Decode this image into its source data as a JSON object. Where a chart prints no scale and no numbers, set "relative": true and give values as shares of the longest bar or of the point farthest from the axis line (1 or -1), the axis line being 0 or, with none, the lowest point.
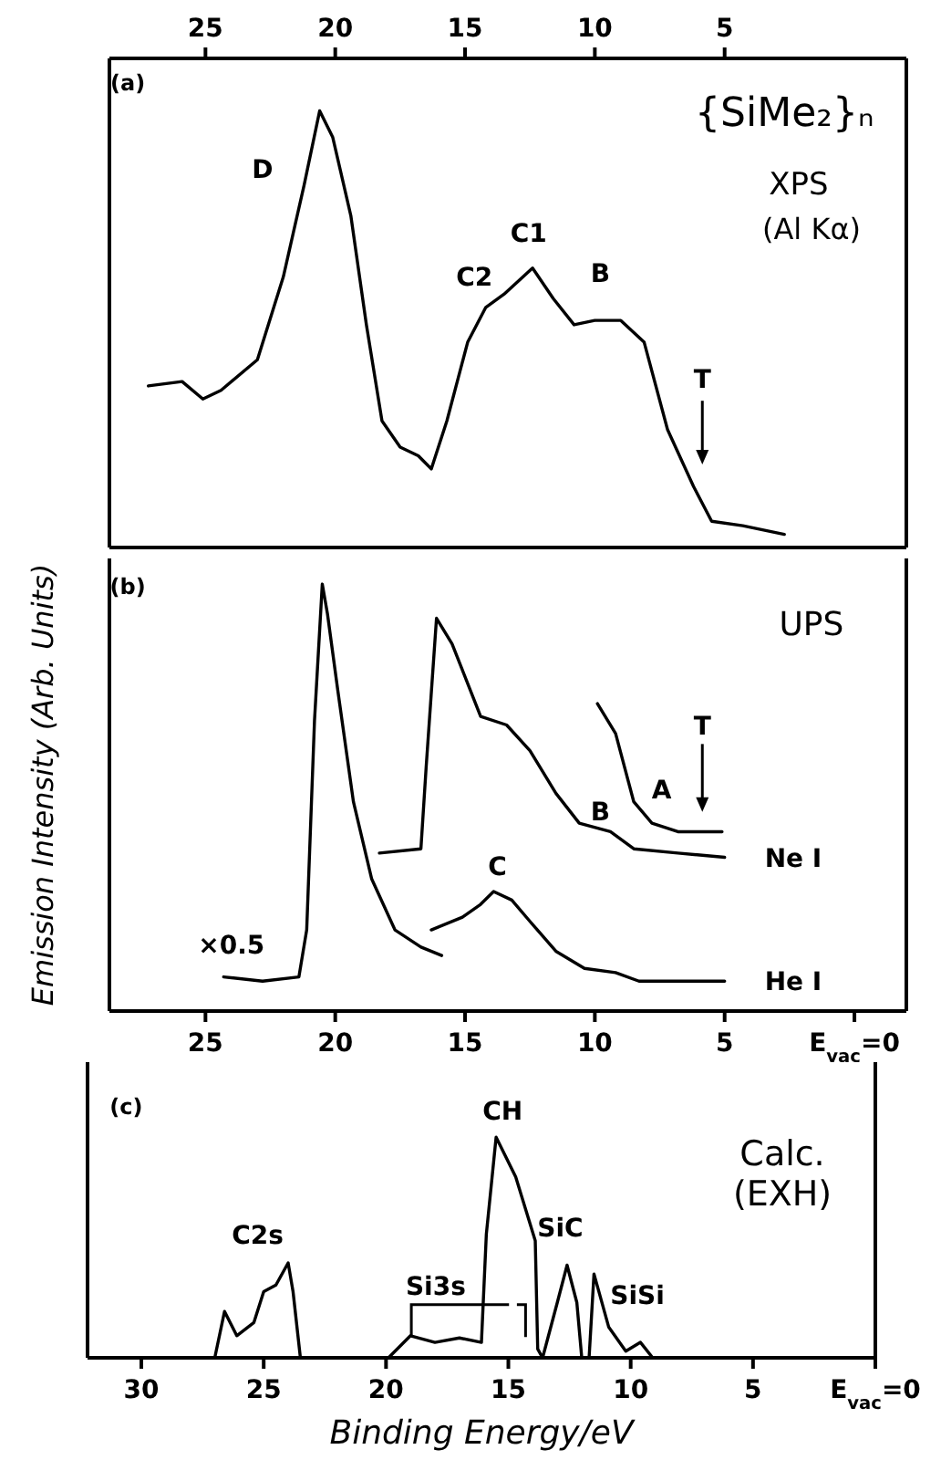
{
  "chart_data": [
    {
      "type": "line",
      "relative": true,
      "xlim": [
        28.7,
        -2
      ],
      "xticks": [
        25,
        20,
        15,
        10,
        5
      ],
      "series": [
        {
          "color": "#000000",
          "x": [
            27.2,
            25.9,
            25.1,
            24.4,
            23.0,
            22.0,
            21.2,
            20.6,
            20.1,
            19.4,
            18.8,
            18.2,
            17.5,
            16.8,
            16.3,
            15.7,
            14.9,
            14.2,
            13.5,
            12.4,
            11.6,
            10.8,
            10.0,
            9.0,
            8.1,
            7.2,
            6.2,
            5.5,
            4.3,
            2.7
          ],
          "values": [
            0.37,
            0.38,
            0.34,
            0.36,
            0.43,
            0.62,
            0.83,
            1.0,
            0.94,
            0.76,
            0.51,
            0.29,
            0.23,
            0.21,
            0.18,
            0.29,
            0.47,
            0.55,
            0.58,
            0.64,
            0.57,
            0.51,
            0.52,
            0.52,
            0.47,
            0.27,
            0.14,
            0.06,
            0.05,
            0.03
          ]
        }
      ],
      "annotations": [
        "(a)",
        "{SiMe₂}ₙ",
        "XPS",
        "(Al Kα)",
        "D",
        "C2",
        "C1",
        "B",
        "T"
      ]
    },
    {
      "type": "line",
      "relative": true,
      "xlim": [
        28.7,
        -2
      ],
      "xticks": [
        25,
        20,
        15,
        10,
        5,
        {
          "value": 0,
          "label": "E$_{vac}$=0"
        }
      ],
      "ylabel": "Emission Intensity (Arb. Units)",
      "series": [
        {
          "color": "#000000",
          "x": [
            24.3,
            22.8,
            21.4,
            21.1,
            20.8,
            20.5,
            20.3,
            19.9,
            19.3,
            18.6,
            17.7,
            16.7,
            15.9
          ],
          "values": [
            0.08,
            0.07,
            0.08,
            0.19,
            0.68,
            1.0,
            0.93,
            0.75,
            0.49,
            0.31,
            0.19,
            0.15,
            0.13
          ]
        },
        {
          "name": "He I",
          "color": "#000000",
          "x": [
            16.3,
            15.1,
            14.4,
            13.9,
            13.2,
            12.5,
            11.5,
            10.4,
            9.2,
            8.3,
            6.8,
            5.0
          ],
          "values": [
            0.19,
            0.22,
            0.25,
            0.28,
            0.26,
            0.21,
            0.14,
            0.1,
            0.09,
            0.07,
            0.07,
            0.07
          ]
        },
        {
          "name": "Ne I",
          "color": "#000000",
          "x": [
            18.3,
            16.7,
            16.5,
            16.1,
            15.5,
            14.4,
            13.4,
            12.5,
            11.5,
            10.6,
            9.4,
            8.5,
            6.8,
            5.0
          ],
          "values": [
            0.37,
            0.38,
            0.57,
            0.92,
            0.86,
            0.69,
            0.67,
            0.61,
            0.51,
            0.44,
            0.42,
            0.38,
            0.37,
            0.36
          ]
        },
        {
          "color": "#000000",
          "x": [
            9.9,
            9.2,
            8.5,
            7.8,
            6.8,
            5.9,
            5.1
          ],
          "values": [
            0.72,
            0.65,
            0.49,
            0.44,
            0.42,
            0.42,
            0.42
          ]
        }
      ],
      "annotations": [
        "(b)",
        "UPS",
        "×0.5",
        "C",
        "B",
        "A",
        "T"
      ]
    },
    {
      "type": "line",
      "relative": true,
      "xlim": [
        32.2,
        0
      ],
      "xticks": [
        30,
        25,
        20,
        15,
        10,
        5,
        {
          "value": 0,
          "label": "E$_{vac}$=0"
        }
      ],
      "xlabel": "Binding Energy/eV",
      "series": [
        {
          "color": "#000000",
          "x": [
            27.0,
            26.6,
            26.1,
            25.4,
            25.0,
            24.5,
            24.0,
            23.8,
            23.5,
            19.9,
            19.0,
            18.0,
            17.0,
            16.1,
            15.9,
            15.5,
            14.7,
            13.9,
            13.8,
            13.6,
            13.0,
            12.6,
            12.2,
            12.0,
            11.7,
            11.5,
            10.9,
            10.2,
            9.6,
            9.1
          ],
          "values": [
            0,
            0.21,
            0.1,
            0.16,
            0.3,
            0.33,
            0.43,
            0.3,
            0,
            0,
            0.1,
            0.07,
            0.09,
            0.07,
            0.56,
            1.0,
            0.82,
            0.53,
            0.04,
            0,
            0.25,
            0.42,
            0.25,
            0,
            0,
            0.38,
            0.14,
            0.03,
            0.07,
            0
          ]
        }
      ],
      "annotations": [
        "(c)",
        "Calc.",
        "(EXH)",
        "CH",
        "C2s",
        "Si3s",
        "SiC",
        "SiSi"
      ]
    }
  ]
}
